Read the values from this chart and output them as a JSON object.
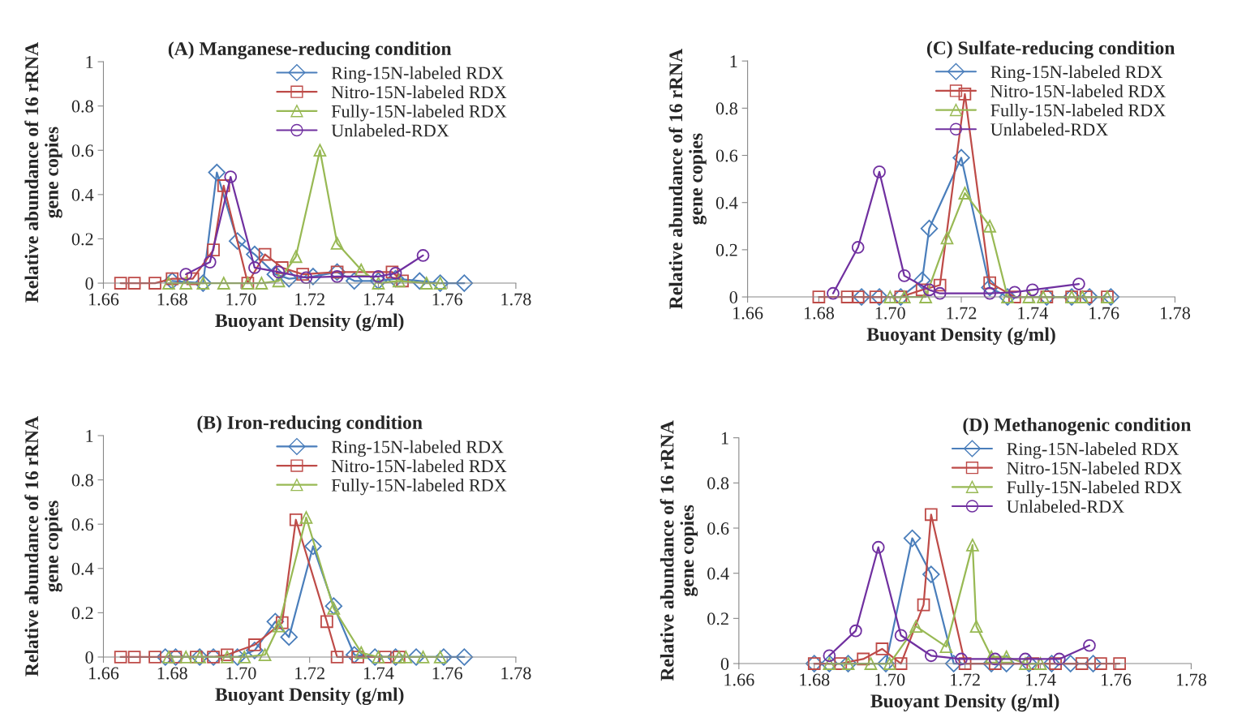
{
  "chart_data": [
    {
      "type": "line",
      "title": "(A) Manganese-reducing condition",
      "xlabel": "Buoyant Density (g/ml)",
      "ylabel": "Relative abundance of 16 rRNA\ngene copies",
      "xlim": [
        1.66,
        1.78
      ],
      "xticks": [
        {
          "value": 1.66,
          "label": "1.66"
        },
        {
          "value": 1.68,
          "label": "1.68"
        },
        {
          "value": 1.7,
          "label": "1.70"
        },
        {
          "value": 1.72,
          "label": "1.72"
        },
        {
          "value": 1.74,
          "label": "1.74"
        },
        {
          "value": 1.76,
          "label": "1.76"
        },
        {
          "value": 1.78,
          "label": "1.78"
        }
      ],
      "ylim": [
        0,
        1
      ],
      "yticks": [
        0,
        0.2,
        0.4,
        0.6,
        0.8,
        1
      ],
      "grid": false,
      "legend": "top right",
      "line_style": "solid",
      "series": [
        {
          "name": "Ring-15N-labeled RDX",
          "color": "#4a7ebb",
          "marker": "diamond",
          "x": [
            1.68,
            1.689,
            1.693,
            1.699,
            1.704,
            1.71,
            1.714,
            1.721,
            1.728,
            1.733,
            1.74,
            1.745,
            1.752,
            1.758,
            1.765
          ],
          "values": [
            0.01,
            0,
            0.5,
            0.19,
            0.13,
            0.04,
            0.02,
            0.03,
            0.05,
            0.01,
            0.01,
            0.02,
            0.01,
            0,
            0
          ]
        },
        {
          "name": "Nitro-15N-labeled RDX",
          "color": "#be4b48",
          "marker": "square",
          "x": [
            1.665,
            1.669,
            1.675,
            1.68,
            1.686,
            1.692,
            1.695,
            1.702,
            1.707,
            1.712,
            1.718,
            1.728,
            1.744,
            1.747
          ],
          "values": [
            0,
            0,
            0,
            0.02,
            0.02,
            0.15,
            0.44,
            0,
            0.13,
            0.07,
            0.04,
            0.05,
            0.05,
            0.01
          ]
        },
        {
          "name": "Fully-15N-labeled RDX",
          "color": "#98b954",
          "marker": "triangle",
          "x": [
            1.679,
            1.684,
            1.689,
            1.695,
            1.702,
            1.706,
            1.711,
            1.716,
            1.723,
            1.728,
            1.735,
            1.74,
            1.746,
            1.754,
            1.758
          ],
          "values": [
            0,
            0,
            0,
            0,
            0,
            0,
            0.01,
            0.12,
            0.6,
            0.18,
            0.06,
            0,
            0.01,
            0,
            0
          ]
        },
        {
          "name": "Unlabeled-RDX",
          "color": "#7030a0",
          "marker": "circle",
          "x": [
            1.684,
            1.691,
            1.697,
            1.704,
            1.711,
            1.719,
            1.728,
            1.74,
            1.745,
            1.753
          ],
          "values": [
            0.04,
            0.095,
            0.48,
            0.07,
            0.05,
            0.025,
            0.03,
            0.03,
            0.045,
            0.125
          ]
        }
      ]
    },
    {
      "type": "line",
      "title": "(C) Sulfate-reducing condition",
      "xlabel": "Buoyant Density (g/ml)",
      "ylabel": "Relative abundance of 16 rRNA\ngene copies",
      "xlim": [
        1.66,
        1.78
      ],
      "xticks": [
        {
          "value": 1.66,
          "label": "1.66"
        },
        {
          "value": 1.68,
          "label": "1.68"
        },
        {
          "value": 1.7,
          "label": "1.70"
        },
        {
          "value": 1.72,
          "label": "1.72"
        },
        {
          "value": 1.74,
          "label": "1.74"
        },
        {
          "value": 1.76,
          "label": "1.76"
        },
        {
          "value": 1.78,
          "label": "1.78"
        }
      ],
      "ylim": [
        0,
        1
      ],
      "yticks": [
        0,
        0.2,
        0.4,
        0.6,
        0.8,
        1
      ],
      "grid": false,
      "legend": "top right",
      "line_style": "solid",
      "series": [
        {
          "name": "Ring-15N-labeled RDX",
          "color": "#4a7ebb",
          "marker": "diamond",
          "x": [
            1.692,
            1.697,
            1.703,
            1.709,
            1.711,
            1.72,
            1.728,
            1.733,
            1.744,
            1.751,
            1.756,
            1.762
          ],
          "values": [
            0,
            0,
            0,
            0.07,
            0.29,
            0.59,
            0.04,
            0,
            0,
            0,
            0,
            0
          ]
        },
        {
          "name": "Nitro-15N-labeled RDX",
          "color": "#be4b48",
          "marker": "square",
          "x": [
            1.68,
            1.688,
            1.691,
            1.696,
            1.703,
            1.709,
            1.714,
            1.721,
            1.728,
            1.735,
            1.744,
            1.751,
            1.755,
            1.761
          ],
          "values": [
            0,
            0,
            0,
            0,
            0,
            0.03,
            0.05,
            0.86,
            0.06,
            0,
            0,
            0,
            0,
            0
          ]
        },
        {
          "name": "Fully-15N-labeled RDX",
          "color": "#98b954",
          "marker": "triangle",
          "x": [
            1.7,
            1.704,
            1.71,
            1.716,
            1.721,
            1.728,
            1.733,
            1.739,
            1.743,
            1.751,
            1.754,
            1.761
          ],
          "values": [
            0,
            0,
            0,
            0.25,
            0.44,
            0.3,
            0,
            0,
            0,
            0,
            0,
            0
          ]
        },
        {
          "name": "Unlabeled-RDX",
          "color": "#7030a0",
          "marker": "circle",
          "x": [
            1.684,
            1.691,
            1.697,
            1.704,
            1.711,
            1.714,
            1.728,
            1.735,
            1.74,
            1.753
          ],
          "values": [
            0.015,
            0.21,
            0.53,
            0.09,
            0.03,
            0.015,
            0.015,
            0.02,
            0.03,
            0.055
          ]
        }
      ]
    },
    {
      "type": "line",
      "title": "(B) Iron-reducing condition",
      "xlabel": "Buoyant Density (g/ml)",
      "ylabel": "Relative abundance of 16 rRNA\ngene copies",
      "xlim": [
        1.66,
        1.78
      ],
      "xticks": [
        {
          "value": 1.66,
          "label": "1.66"
        },
        {
          "value": 1.68,
          "label": "1.68"
        },
        {
          "value": 1.7,
          "label": "1.70"
        },
        {
          "value": 1.72,
          "label": "1.72"
        },
        {
          "value": 1.74,
          "label": "1.74"
        },
        {
          "value": 1.76,
          "label": "1.76"
        },
        {
          "value": 1.78,
          "label": "1.78"
        }
      ],
      "ylim": [
        0,
        1
      ],
      "yticks": [
        0,
        0.2,
        0.4,
        0.6,
        0.8,
        1
      ],
      "grid": false,
      "legend": "top right",
      "line_style": "solid",
      "series": [
        {
          "name": "Ring-15N-labeled RDX",
          "color": "#4a7ebb",
          "marker": "diamond",
          "x": [
            1.678,
            1.681,
            1.688,
            1.692,
            1.699,
            1.704,
            1.71,
            1.714,
            1.721,
            1.727,
            1.733,
            1.739,
            1.745,
            1.751,
            1.759,
            1.765
          ],
          "values": [
            0,
            0,
            0,
            0,
            0,
            0.03,
            0.16,
            0.09,
            0.5,
            0.23,
            0.01,
            0,
            0,
            0,
            0,
            0
          ]
        },
        {
          "name": "Nitro-15N-labeled RDX",
          "color": "#be4b48",
          "marker": "square",
          "x": [
            1.665,
            1.669,
            1.675,
            1.681,
            1.687,
            1.692,
            1.696,
            1.704,
            1.712,
            1.716,
            1.725,
            1.728,
            1.734,
            1.742,
            1.746
          ],
          "values": [
            0,
            0,
            0,
            0,
            0,
            0,
            0.01,
            0.055,
            0.155,
            0.62,
            0.16,
            0,
            0,
            0,
            0
          ]
        },
        {
          "name": "Fully-15N-labeled RDX",
          "color": "#98b954",
          "marker": "triangle",
          "x": [
            1.679,
            1.684,
            1.688,
            1.696,
            1.701,
            1.707,
            1.711,
            1.719,
            1.727,
            1.735,
            1.74,
            1.746,
            1.748,
            1.753,
            1.758
          ],
          "values": [
            0,
            0,
            0,
            0,
            0,
            0.01,
            0.14,
            0.63,
            0.22,
            0.02,
            0,
            0,
            0,
            0,
            0
          ]
        }
      ]
    },
    {
      "type": "line",
      "title": "(D) Methanogenic condition",
      "xlabel": "Buoyant Density (g/ml)",
      "ylabel": "Relative abundance of 16 rRNA\ngene copies",
      "xlim": [
        1.66,
        1.78
      ],
      "xticks": [
        {
          "value": 1.66,
          "label": "1.66"
        },
        {
          "value": 1.68,
          "label": "1.68"
        },
        {
          "value": 1.7,
          "label": "1.70"
        },
        {
          "value": 1.72,
          "label": "1.72"
        },
        {
          "value": 1.74,
          "label": "1.74"
        },
        {
          "value": 1.76,
          "label": "1.76"
        },
        {
          "value": 1.78,
          "label": "1.78"
        }
      ],
      "ylim": [
        0,
        1
      ],
      "yticks": [
        0,
        0.2,
        0.4,
        0.6,
        0.8,
        1
      ],
      "grid": false,
      "legend": "top right",
      "line_style": "solid",
      "series": [
        {
          "name": "Ring-15N-labeled RDX",
          "color": "#4a7ebb",
          "marker": "diamond",
          "x": [
            1.68,
            1.684,
            1.689,
            1.699,
            1.706,
            1.711,
            1.717,
            1.727,
            1.731,
            1.737,
            1.743,
            1.748,
            1.754
          ],
          "values": [
            0,
            0,
            0,
            0,
            0.555,
            0.395,
            0,
            0,
            0,
            0,
            0,
            0,
            0
          ]
        },
        {
          "name": "Nitro-15N-labeled RDX",
          "color": "#be4b48",
          "marker": "square",
          "x": [
            1.68,
            1.687,
            1.693,
            1.698,
            1.703,
            1.709,
            1.711,
            1.72,
            1.728,
            1.738,
            1.744,
            1.751,
            1.756,
            1.761
          ],
          "values": [
            0,
            0,
            0.02,
            0.065,
            0,
            0.26,
            0.66,
            0,
            0,
            0,
            0,
            0,
            0,
            0
          ]
        },
        {
          "name": "Fully-15N-labeled RDX",
          "color": "#98b954",
          "marker": "triangle",
          "x": [
            1.684,
            1.689,
            1.695,
            1.7,
            1.707,
            1.715,
            1.722,
            1.723,
            1.727,
            1.731,
            1.736,
            1.74
          ],
          "values": [
            0,
            0,
            0,
            0,
            0.165,
            0.075,
            0.525,
            0.165,
            0.03,
            0.03,
            0,
            0
          ]
        },
        {
          "name": "Unlabeled-RDX",
          "color": "#7030a0",
          "marker": "circle",
          "x": [
            1.684,
            1.691,
            1.697,
            1.703,
            1.711,
            1.719,
            1.728,
            1.736,
            1.745,
            1.753
          ],
          "values": [
            0.035,
            0.145,
            0.515,
            0.125,
            0.035,
            0.02,
            0.02,
            0.02,
            0.02,
            0.08
          ]
        }
      ]
    }
  ]
}
